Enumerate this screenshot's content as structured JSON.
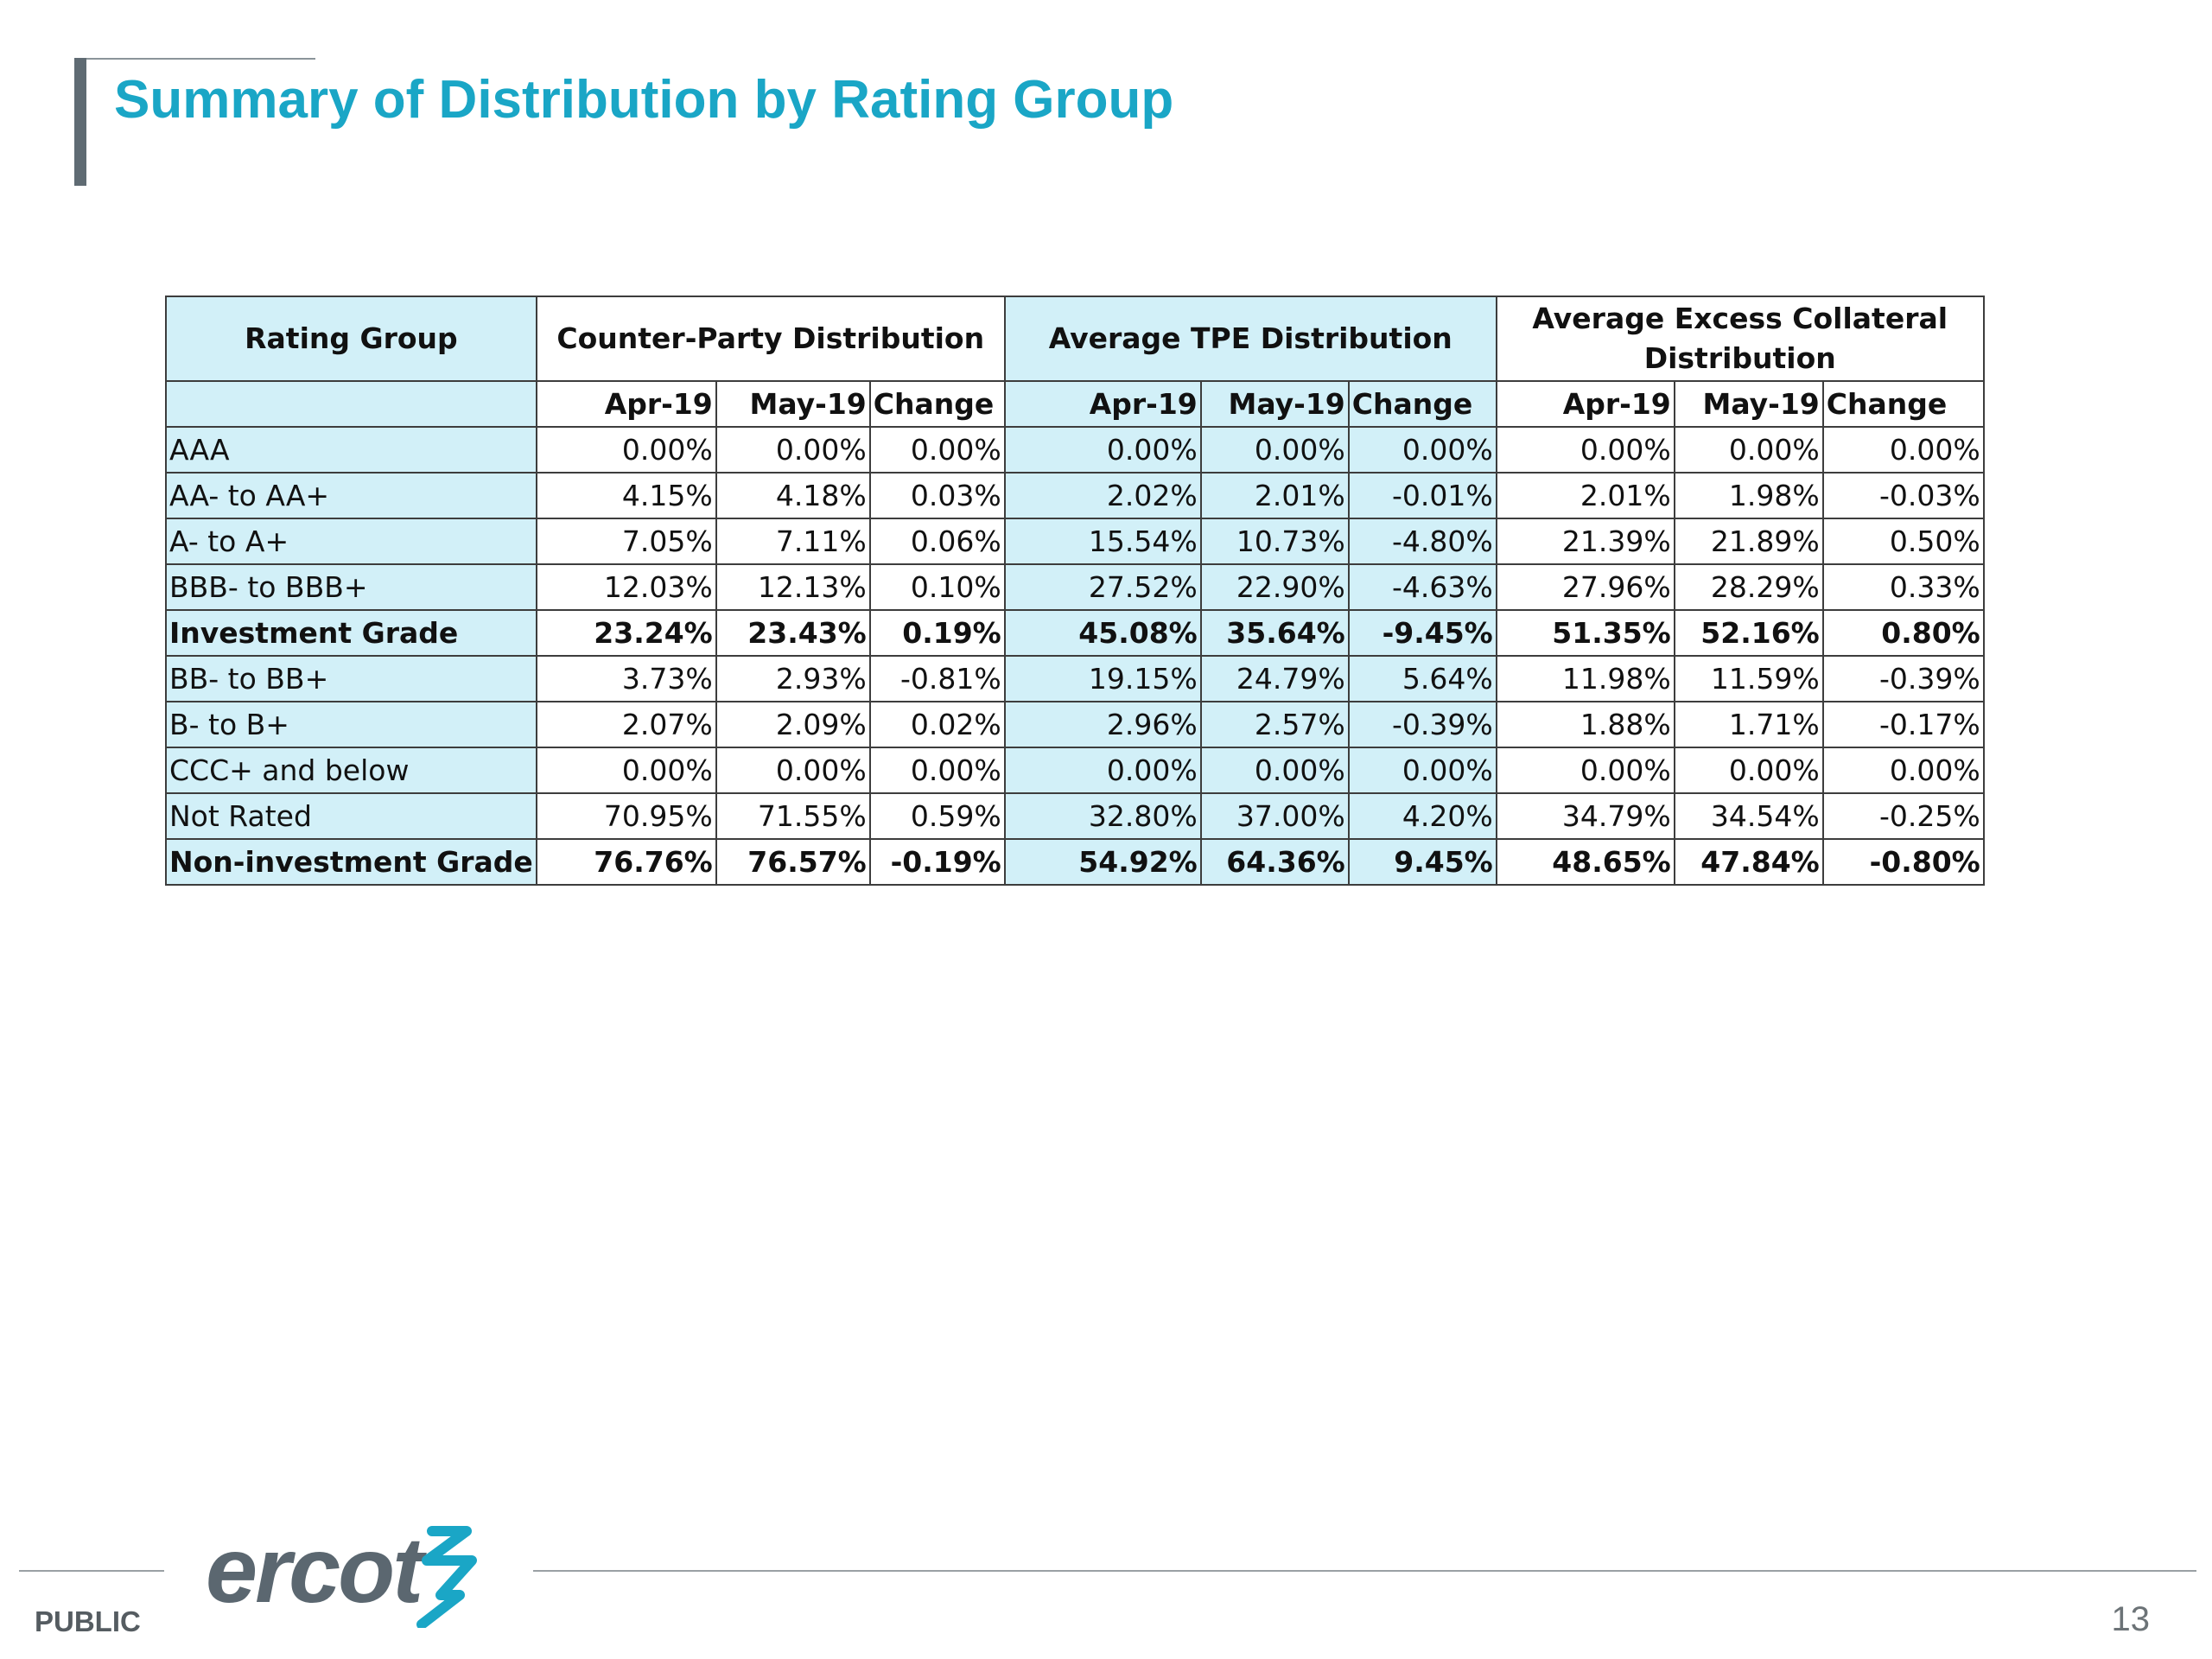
{
  "title": "Summary of Distribution by Rating Group",
  "table": {
    "group_headers": {
      "rating_group": "Rating Group",
      "counter_party": "Counter-Party Distribution",
      "tpe": "Average TPE Distribution",
      "excess": "Average Excess Collateral Distribution"
    },
    "sub_headers": [
      "Apr-19",
      "May-19",
      "Change",
      "Apr-19",
      "May-19",
      "Change",
      "Apr-19",
      "May-19",
      "Change"
    ],
    "rows": [
      {
        "label": "AAA",
        "bold": false,
        "values": [
          "0.00%",
          "0.00%",
          "0.00%",
          "0.00%",
          "0.00%",
          "0.00%",
          "0.00%",
          "0.00%",
          "0.00%"
        ]
      },
      {
        "label": "AA- to AA+",
        "bold": false,
        "values": [
          "4.15%",
          "4.18%",
          "0.03%",
          "2.02%",
          "2.01%",
          "-0.01%",
          "2.01%",
          "1.98%",
          "-0.03%"
        ]
      },
      {
        "label": "A- to A+",
        "bold": false,
        "values": [
          "7.05%",
          "7.11%",
          "0.06%",
          "15.54%",
          "10.73%",
          "-4.80%",
          "21.39%",
          "21.89%",
          "0.50%"
        ]
      },
      {
        "label": "BBB- to BBB+",
        "bold": false,
        "values": [
          "12.03%",
          "12.13%",
          "0.10%",
          "27.52%",
          "22.90%",
          "-4.63%",
          "27.96%",
          "28.29%",
          "0.33%"
        ]
      },
      {
        "label": "Investment Grade",
        "bold": true,
        "values": [
          "23.24%",
          "23.43%",
          "0.19%",
          "45.08%",
          "35.64%",
          "-9.45%",
          "51.35%",
          "52.16%",
          "0.80%"
        ]
      },
      {
        "label": "BB- to BB+",
        "bold": false,
        "values": [
          "3.73%",
          "2.93%",
          "-0.81%",
          "19.15%",
          "24.79%",
          "5.64%",
          "11.98%",
          "11.59%",
          "-0.39%"
        ]
      },
      {
        "label": "B- to B+",
        "bold": false,
        "values": [
          "2.07%",
          "2.09%",
          "0.02%",
          "2.96%",
          "2.57%",
          "-0.39%",
          "1.88%",
          "1.71%",
          "-0.17%"
        ]
      },
      {
        "label": "CCC+ and below",
        "bold": false,
        "values": [
          "0.00%",
          "0.00%",
          "0.00%",
          "0.00%",
          "0.00%",
          "0.00%",
          "0.00%",
          "0.00%",
          "0.00%"
        ]
      },
      {
        "label": "Not Rated",
        "bold": false,
        "values": [
          "70.95%",
          "71.55%",
          "0.59%",
          "32.80%",
          "37.00%",
          "4.20%",
          "34.79%",
          "34.54%",
          "-0.25%"
        ]
      },
      {
        "label": "Non-investment Grade",
        "bold": true,
        "values": [
          "76.76%",
          "76.57%",
          "-0.19%",
          "54.92%",
          "64.36%",
          "9.45%",
          "48.65%",
          "47.84%",
          "-0.80%"
        ]
      }
    ]
  },
  "footer": {
    "logo_text": "ercot",
    "classification": "PUBLIC",
    "page_number": "13"
  },
  "colors": {
    "title": "#1aa6c6",
    "header_fill": "#d2f0f8",
    "logo": "#5b6770",
    "logo_mark": "#1aa6c6"
  },
  "icons": [
    "ercot-logo-icon"
  ]
}
